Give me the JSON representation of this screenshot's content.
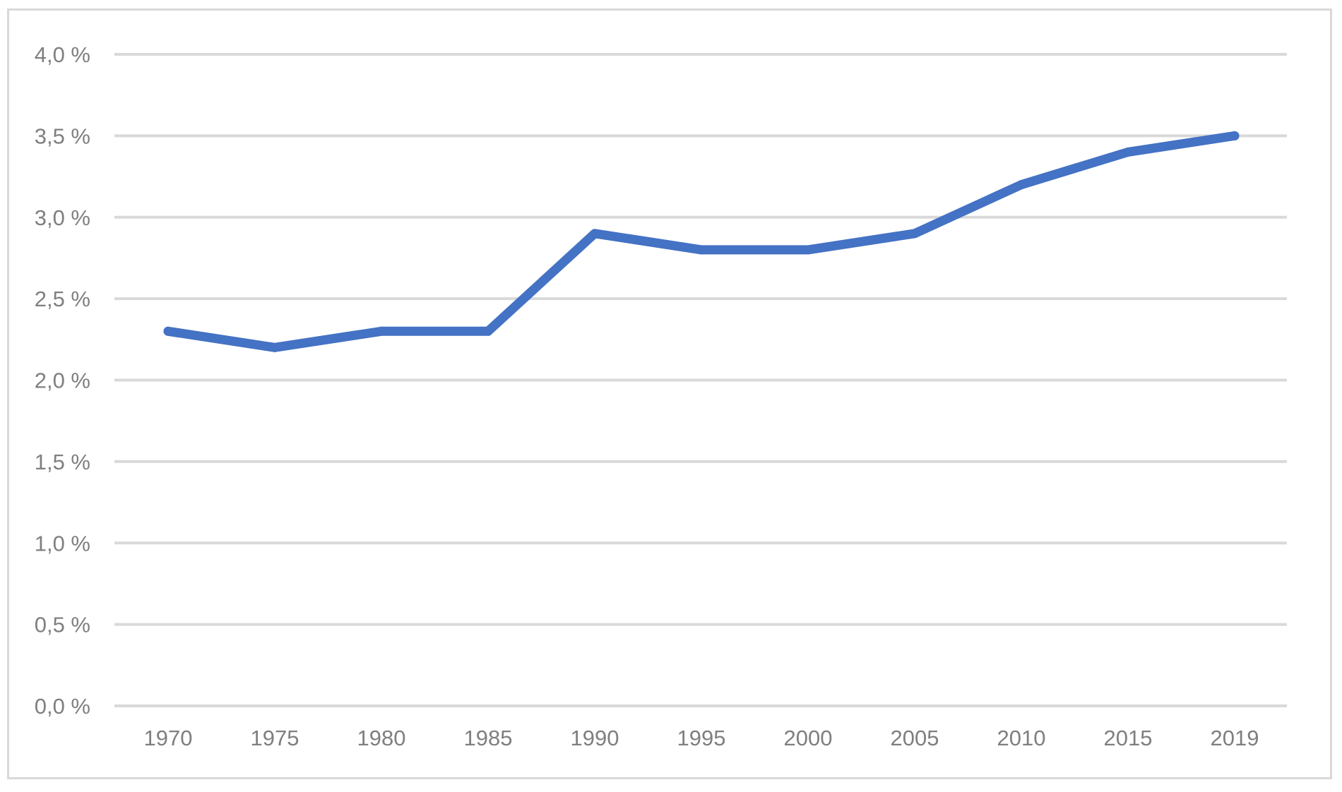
{
  "chart_data": {
    "type": "line",
    "title": "",
    "xlabel": "",
    "ylabel": "",
    "x": [
      "1970",
      "1975",
      "1980",
      "1985",
      "1990",
      "1995",
      "2000",
      "2005",
      "2010",
      "2015",
      "2019"
    ],
    "series": [
      {
        "values": [
          2.3,
          2.2,
          2.3,
          2.3,
          2.9,
          2.8,
          2.8,
          2.9,
          3.2,
          3.4,
          3.5
        ],
        "color": "#4472c4"
      }
    ],
    "ylim": [
      0,
      4.0
    ],
    "yticks": [
      0,
      0.5,
      1.0,
      1.5,
      2.0,
      2.5,
      3.0,
      3.5,
      4.0
    ],
    "ytick_labels": [
      "0,0 %",
      "0,5 %",
      "1,0 %",
      "1,5 %",
      "2,0 %",
      "2,5 %",
      "3,0 %",
      "3,5 %",
      "4,0 %"
    ],
    "grid": true,
    "gridline_color": "#d9d9d9",
    "legend": "none"
  }
}
